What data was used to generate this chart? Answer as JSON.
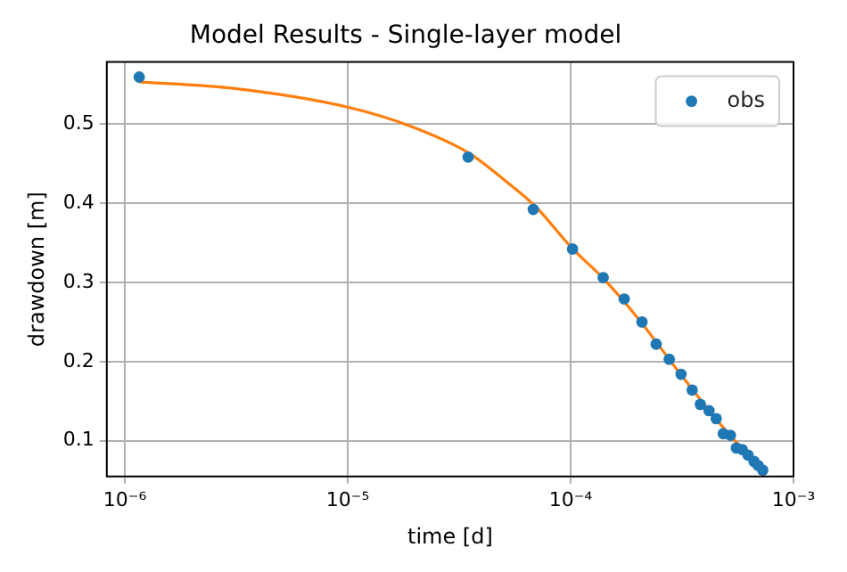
{
  "chart_data": {
    "type": "scatter",
    "title": "Model Results - Single-layer model",
    "xlabel": "time [d]",
    "ylabel": "drawdown [m]",
    "log": "x",
    "grid": true,
    "legend": "top right",
    "xlim": [
      8.3e-07,
      0.001
    ],
    "ylim": [
      0.055,
      0.578
    ],
    "xticks": [
      {
        "value": 1e-06,
        "label": "10⁻⁶"
      },
      {
        "value": 1e-05,
        "label": "10⁻⁵"
      },
      {
        "value": 0.0001,
        "label": "10⁻⁴"
      },
      {
        "value": 0.001,
        "label": "10⁻³"
      }
    ],
    "yticks": [
      0.1,
      0.2,
      0.3,
      0.4,
      0.5
    ],
    "series": [
      {
        "name": "obs",
        "type": "scatter",
        "marker": "circle",
        "color": "#1f77b4",
        "x": [
          1.16e-06,
          3.47e-05,
          6.8e-05,
          0.000102,
          0.00014,
          0.000174,
          0.000209,
          0.000242,
          0.000277,
          0.000313,
          0.000351,
          0.000382,
          0.000418,
          0.00045,
          0.000484,
          0.000521,
          0.000554,
          0.000589,
          0.000625,
          0.000665,
          0.000693,
          0.000728
        ],
        "values": [
          0.559,
          0.458,
          0.392,
          0.342,
          0.306,
          0.279,
          0.25,
          0.222,
          0.203,
          0.184,
          0.164,
          0.146,
          0.138,
          0.128,
          0.109,
          0.107,
          0.091,
          0.089,
          0.082,
          0.074,
          0.069,
          0.063
        ]
      },
      {
        "type": "line",
        "marker": "none",
        "line_style": "solid",
        "color": "#ff7f0e",
        "x": [
          1.16e-06,
          3e-06,
          1e-05,
          2e-05,
          3.5e-05,
          5e-05,
          7e-05,
          0.0001,
          0.00014,
          0.0002,
          0.0003,
          0.0004,
          0.0005,
          0.00073
        ],
        "values": [
          0.553,
          0.545,
          0.521,
          0.495,
          0.463,
          0.43,
          0.395,
          0.345,
          0.305,
          0.255,
          0.19,
          0.145,
          0.112,
          0.063
        ]
      }
    ]
  }
}
